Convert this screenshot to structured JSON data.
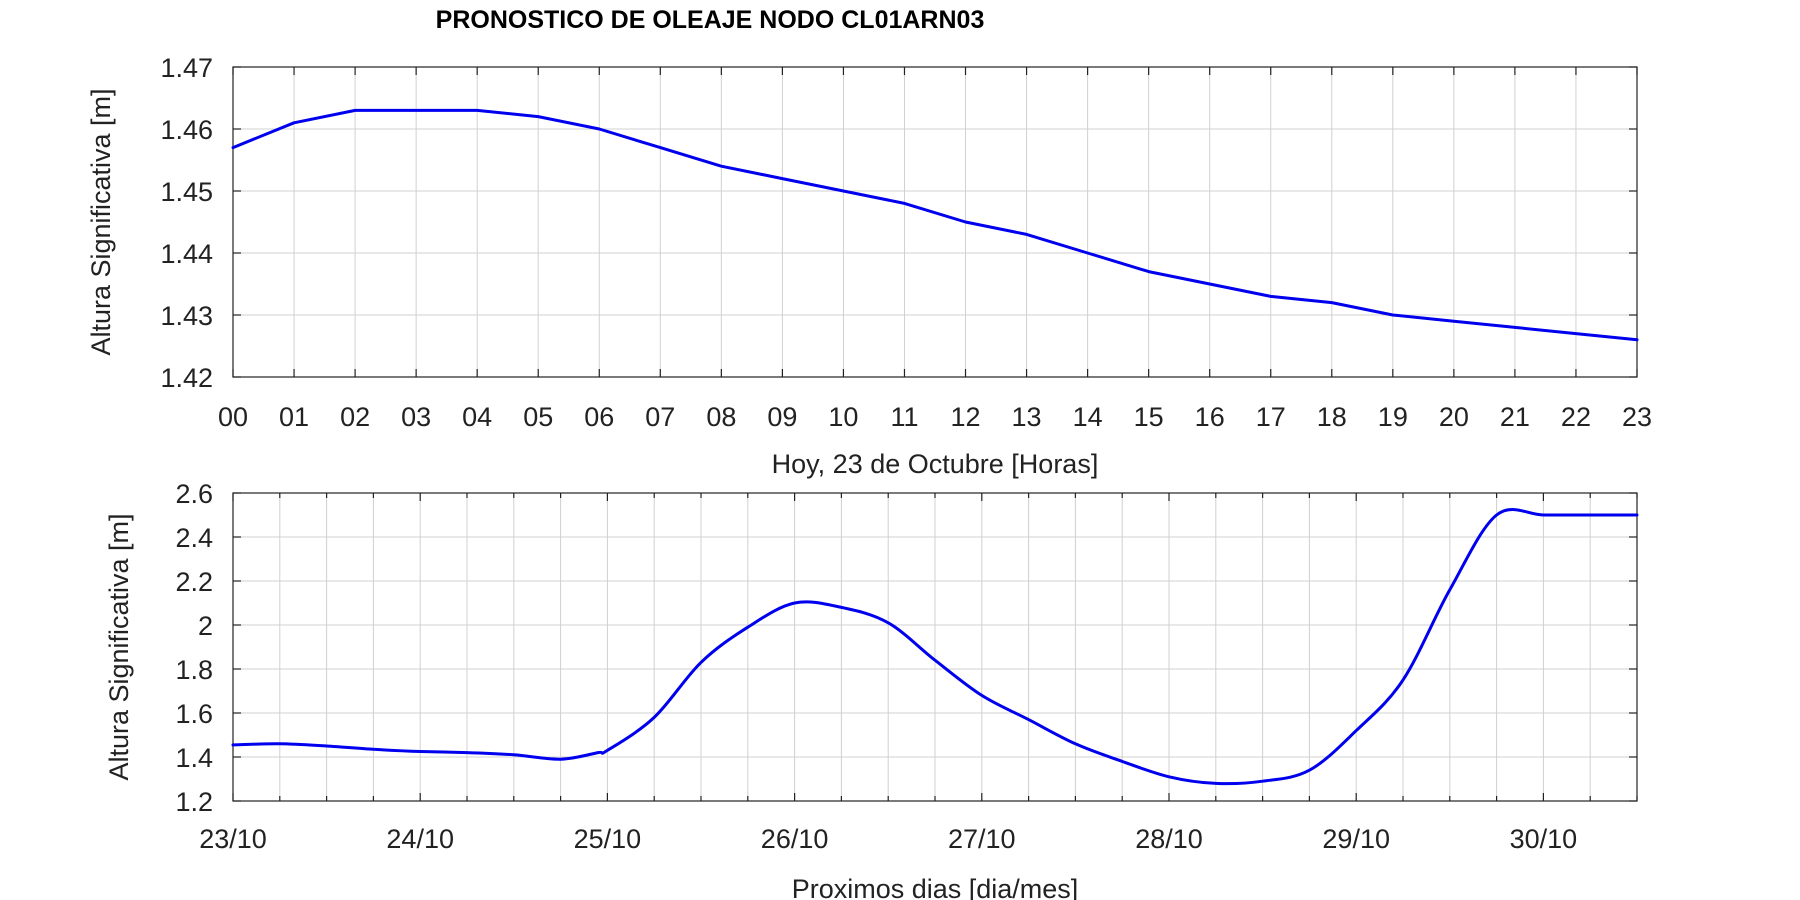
{
  "title": "PRONOSTICO DE OLEAJE NODO CL01ARN03",
  "colors": {
    "series": "#0000ee",
    "grid": "#d0d0d0",
    "axis": "#222222"
  },
  "chart_data": [
    {
      "type": "line",
      "xlabel": "Hoy, 23 de   Octubre   [Horas]",
      "ylabel": "Altura Significativa [m]",
      "ylim": [
        1.42,
        1.47
      ],
      "xlim": [
        0,
        23
      ],
      "grid": true,
      "x": [
        0,
        1,
        2,
        3,
        4,
        5,
        6,
        7,
        8,
        9,
        10,
        11,
        12,
        13,
        14,
        15,
        16,
        17,
        18,
        19,
        20,
        21,
        22,
        23
      ],
      "x_tick_labels": [
        "00",
        "01",
        "02",
        "03",
        "04",
        "05",
        "06",
        "07",
        "08",
        "09",
        "10",
        "11",
        "12",
        "13",
        "14",
        "15",
        "16",
        "17",
        "18",
        "19",
        "20",
        "21",
        "22",
        "23"
      ],
      "y_ticks": [
        1.42,
        1.43,
        1.44,
        1.45,
        1.46,
        1.47
      ],
      "y_tick_labels": [
        "1.42",
        "1.43",
        "1.44",
        "1.45",
        "1.46",
        "1.47"
      ],
      "series": [
        {
          "values": [
            1.457,
            1.461,
            1.463,
            1.463,
            1.463,
            1.462,
            1.46,
            1.457,
            1.454,
            1.452,
            1.45,
            1.448,
            1.445,
            1.443,
            1.44,
            1.437,
            1.435,
            1.433,
            1.432,
            1.43,
            1.429,
            1.428,
            1.427,
            1.426
          ]
        }
      ]
    },
    {
      "type": "line",
      "xlabel": "Proximos dias [dia/mes]",
      "ylabel": "Altura Significativa [m]",
      "ylim": [
        1.2,
        2.6
      ],
      "xlim": [
        0,
        7.5
      ],
      "grid": true,
      "x_ticks": [
        0,
        1,
        2,
        3,
        4,
        5,
        6,
        7
      ],
      "x_tick_labels": [
        "23/10",
        "24/10",
        "25/10",
        "26/10",
        "27/10",
        "28/10",
        "29/10",
        "30/10"
      ],
      "y_ticks": [
        1.2,
        1.4,
        1.6,
        1.8,
        2.0,
        2.2,
        2.4,
        2.6
      ],
      "y_tick_labels": [
        "1.2",
        "1.4",
        "1.6",
        "1.8",
        "2",
        "2.2",
        "2.4",
        "2.6"
      ],
      "series": [
        {
          "x": [
            0,
            0.25,
            0.5,
            0.75,
            1,
            1.25,
            1.5,
            1.75,
            1.95,
            2,
            2.25,
            2.5,
            2.75,
            3,
            3.25,
            3.5,
            3.75,
            4,
            4.25,
            4.5,
            4.75,
            5,
            5.25,
            5.5,
            5.75,
            6,
            6.25,
            6.5,
            6.75,
            7,
            7.25,
            7.5
          ],
          "values": [
            1.455,
            1.46,
            1.45,
            1.435,
            1.425,
            1.42,
            1.41,
            1.39,
            1.42,
            1.43,
            1.58,
            1.83,
            1.99,
            2.1,
            2.08,
            2.01,
            1.84,
            1.68,
            1.57,
            1.46,
            1.38,
            1.31,
            1.28,
            1.29,
            1.34,
            1.52,
            1.75,
            2.16,
            2.5,
            2.5,
            2.5,
            2.5
          ]
        }
      ]
    }
  ]
}
